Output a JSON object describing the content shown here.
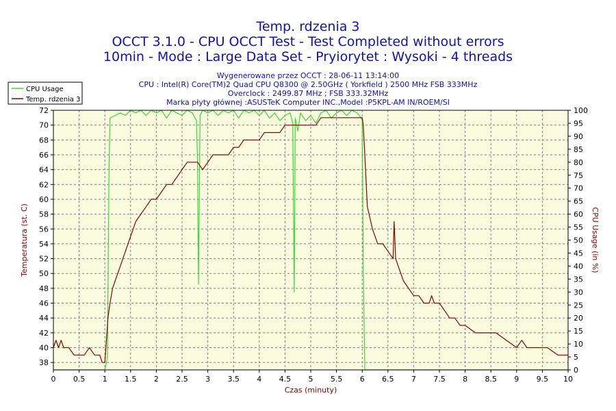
{
  "header": {
    "title": "Temp. rdzenia 3",
    "subtitle1": "OCCT 3.1.0 - CPU OCCT Test - Test Completed without errors",
    "subtitle2": "10min - Mode : Large Data Set - Pryiorytet : Wysoki - 4 threads",
    "info1": "Wygenerowane przez OCCT : 28-06-11 13:14:00",
    "info2": "CPU : Intel(R) Core(TM)2 Quad CPU Q8300 @ 2.50GHz ( Yorkfield ) 2500 MHz FSB 333MHz",
    "info3": "Overclock : 2499.87 MHz ; FSB 333.32MHz",
    "info4": "Marka płyty głównej :ASUSTeK Computer INC.,Model :P5KPL-AM IN/ROEM/SI"
  },
  "chart_data": {
    "type": "line",
    "xlabel": "Czas (minuty)",
    "ylabel": "Temperatura (st. C)",
    "y2label": "CPU Usage (in %)",
    "xlim": [
      0,
      10
    ],
    "ylim": [
      37,
      72
    ],
    "y2lim": [
      0,
      100
    ],
    "xticks": [
      0,
      0.5,
      1,
      1.5,
      2,
      2.5,
      3,
      3.5,
      4,
      4.5,
      5,
      5.5,
      6,
      6.5,
      7,
      7.5,
      8,
      8.5,
      9,
      9.5,
      10
    ],
    "yticks": [
      38,
      40,
      42,
      44,
      46,
      48,
      50,
      52,
      54,
      56,
      58,
      60,
      62,
      64,
      66,
      68,
      70,
      72
    ],
    "y2ticks": [
      0,
      5,
      10,
      15,
      20,
      25,
      30,
      35,
      40,
      45,
      50,
      55,
      60,
      65,
      70,
      75,
      80,
      85,
      90,
      95,
      100
    ],
    "grid": true,
    "legend_position": "top-left",
    "colors": {
      "plot_bg": "#fbfbe0",
      "temp": "#8b0000",
      "usage": "#33dd33",
      "title": "#1010b8"
    },
    "series": [
      {
        "name": "CPU Usage",
        "axis": "right",
        "x": [
          0,
          0.98,
          1.0,
          1.05,
          1.08,
          1.1,
          1.2,
          1.3,
          1.4,
          1.5,
          1.6,
          1.7,
          1.8,
          1.9,
          2.0,
          2.1,
          2.2,
          2.3,
          2.4,
          2.5,
          2.6,
          2.7,
          2.78,
          2.8,
          2.82,
          2.85,
          2.9,
          3.0,
          3.1,
          3.2,
          3.3,
          3.4,
          3.5,
          3.6,
          3.7,
          3.8,
          3.9,
          4.0,
          4.1,
          4.2,
          4.3,
          4.4,
          4.5,
          4.6,
          4.65,
          4.68,
          4.7,
          4.75,
          4.8,
          4.9,
          5.0,
          5.1,
          5.2,
          5.3,
          5.4,
          5.5,
          5.6,
          5.7,
          5.8,
          5.9,
          5.98,
          6.0,
          6.02,
          6.05,
          10
        ],
        "values": [
          0,
          0,
          0,
          5,
          75,
          97,
          98,
          99,
          98,
          100,
          99,
          100,
          98,
          100,
          99,
          100,
          97,
          100,
          99,
          98,
          100,
          99,
          96,
          80,
          33,
          98,
          100,
          99,
          100,
          98,
          100,
          99,
          100,
          97,
          100,
          99,
          100,
          98,
          100,
          97,
          99,
          96,
          98,
          99,
          95,
          30,
          97,
          92,
          99,
          96,
          98,
          95,
          99,
          100,
          97,
          99,
          100,
          98,
          100,
          99,
          97,
          96,
          40,
          0,
          0
        ]
      },
      {
        "name": "Temp. rdzenia 3",
        "axis": "left",
        "x": [
          0,
          0.05,
          0.1,
          0.15,
          0.2,
          0.3,
          0.4,
          0.5,
          0.6,
          0.7,
          0.8,
          0.9,
          0.95,
          1.0,
          1.03,
          1.06,
          1.1,
          1.15,
          1.2,
          1.3,
          1.4,
          1.5,
          1.6,
          1.7,
          1.8,
          1.9,
          2.0,
          2.1,
          2.2,
          2.3,
          2.4,
          2.5,
          2.6,
          2.7,
          2.8,
          2.9,
          3.0,
          3.1,
          3.2,
          3.3,
          3.4,
          3.5,
          3.6,
          3.7,
          3.8,
          3.9,
          4.0,
          4.1,
          4.2,
          4.3,
          4.4,
          4.5,
          4.6,
          4.7,
          4.8,
          4.9,
          5.0,
          5.1,
          5.2,
          5.3,
          5.4,
          5.5,
          5.6,
          5.7,
          5.8,
          5.9,
          6.0,
          6.02,
          6.05,
          6.1,
          6.2,
          6.3,
          6.4,
          6.5,
          6.6,
          6.62,
          6.65,
          6.7,
          6.8,
          6.9,
          7.0,
          7.1,
          7.2,
          7.3,
          7.35,
          7.4,
          7.5,
          7.6,
          7.7,
          7.8,
          7.9,
          8.0,
          8.2,
          8.4,
          8.6,
          8.8,
          9.0,
          9.1,
          9.2,
          9.4,
          9.6,
          9.8,
          10
        ],
        "values": [
          40,
          41,
          40,
          41,
          40,
          40,
          39,
          39,
          39,
          40,
          39,
          39,
          38,
          38,
          41,
          44,
          46,
          48,
          49,
          51,
          53,
          55,
          57,
          58,
          59,
          60,
          60,
          61,
          62,
          62,
          63,
          64,
          65,
          65,
          65,
          64,
          65,
          66,
          66,
          66,
          66,
          67,
          67,
          68,
          68,
          68,
          68,
          69,
          69,
          69,
          69,
          70,
          70,
          70,
          70,
          70,
          70,
          70,
          71,
          71,
          71,
          71,
          71,
          71,
          71,
          71,
          71,
          70,
          66,
          59,
          56,
          54,
          54,
          53,
          52,
          57,
          52,
          51,
          49,
          48,
          47,
          47,
          46,
          46,
          47,
          46,
          46,
          45,
          44,
          44,
          43,
          43,
          42,
          42,
          42,
          41,
          40,
          41,
          40,
          40,
          40,
          39,
          39
        ]
      }
    ]
  }
}
